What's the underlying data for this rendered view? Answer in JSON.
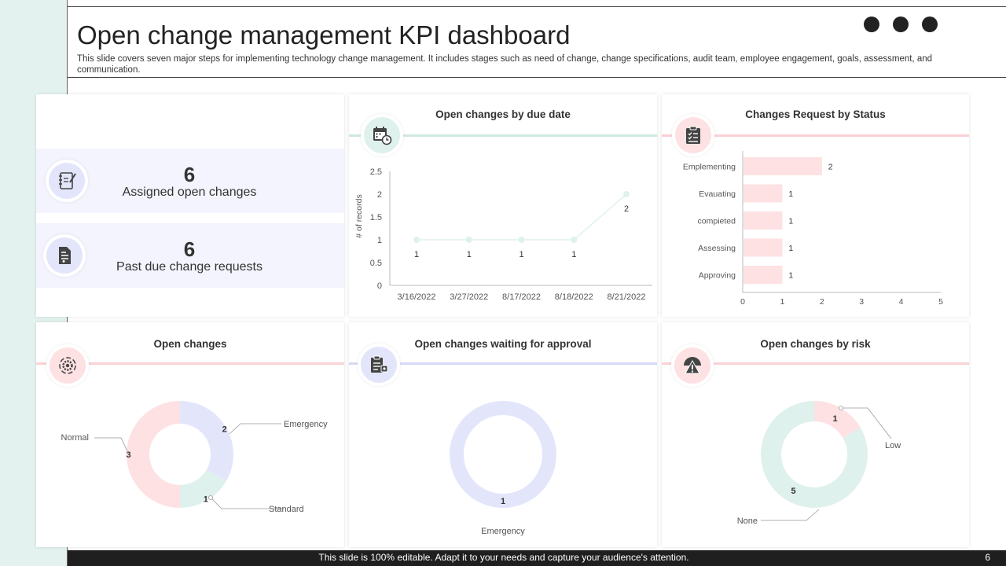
{
  "header": {
    "title": "Open change management KPI dashboard",
    "subtitle": "This slide covers seven major steps for implementing technology change management. It includes stages such as need of change, change specifications, audit team, employee engagement, goals, assessment, and communication."
  },
  "kpis": [
    {
      "value": "6",
      "label": "Assigned open changes",
      "icon": "notebook-pen-icon"
    },
    {
      "value": "6",
      "label": "Past due change requests",
      "icon": "document-icon"
    }
  ],
  "panels": {
    "due_date": {
      "title": "Open changes by due date",
      "icon": "calendar-clock-icon"
    },
    "status": {
      "title": "Changes Request by Status",
      "icon": "clipboard-checklist-icon"
    },
    "open_changes": {
      "title": "Open changes",
      "icon": "gear-cycle-icon"
    },
    "waiting": {
      "title": "Open changes waiting for approval",
      "icon": "approval-form-icon"
    },
    "risk": {
      "title": "Open changes by risk",
      "icon": "warning-triangle-icon"
    }
  },
  "colors": {
    "green": "#dff1ec",
    "pink": "#fde1e3",
    "lavender": "#e3e6fb",
    "green_line": "#cfe9e1",
    "pink_line": "#f9d2d6",
    "lavender_line": "#d5d9f6"
  },
  "chart_data": [
    {
      "type": "line",
      "title": "Open changes by due date",
      "ylabel": "# of records",
      "x": [
        "3/16/2022",
        "3/27/2022",
        "8/17/2022",
        "8/18/2022",
        "8/21/2022"
      ],
      "series": [
        {
          "values": [
            1,
            1,
            1,
            1,
            2
          ]
        }
      ],
      "ylim": [
        0,
        2.5
      ],
      "yticks": [
        "0",
        "0.5",
        "1",
        "1.5",
        "2",
        "2.5"
      ],
      "data_labels": [
        "1",
        "1",
        "1",
        "1",
        "2"
      ],
      "grid": false
    },
    {
      "type": "bar",
      "orientation": "horizontal",
      "title": "Changes Request by Status",
      "categories": [
        "Emplementing",
        "Evauating",
        "compieted",
        "Assessing",
        "Approving"
      ],
      "values": [
        2,
        1,
        1,
        1,
        1
      ],
      "xlim": [
        0,
        5
      ],
      "xticks": [
        "0",
        "1",
        "2",
        "3",
        "4",
        "5"
      ],
      "data_labels": [
        "2",
        "1",
        "1",
        "1",
        "1"
      ]
    },
    {
      "type": "pie",
      "style": "donut",
      "title": "Open changes",
      "categories": [
        "Emergency",
        "Standard",
        "Normal"
      ],
      "values": [
        2,
        1,
        3
      ],
      "data_labels": [
        "2",
        "1",
        "3"
      ],
      "colors": [
        "#e3e6fb",
        "#dff1ec",
        "#fde1e3"
      ]
    },
    {
      "type": "pie",
      "style": "donut",
      "title": "Open changes waiting for approval",
      "categories": [
        "Emergency"
      ],
      "values": [
        1
      ],
      "data_labels": [
        "1"
      ],
      "colors": [
        "#e3e6fb"
      ]
    },
    {
      "type": "pie",
      "style": "donut",
      "title": "Open changes by risk",
      "categories": [
        "Low",
        "None"
      ],
      "values": [
        1,
        5
      ],
      "data_labels": [
        "1",
        "5"
      ],
      "colors": [
        "#fde1e3",
        "#dff1ec"
      ]
    }
  ],
  "footer": {
    "text": "This slide is 100% editable. Adapt it to your needs and capture your audience's attention.",
    "page": "6"
  }
}
